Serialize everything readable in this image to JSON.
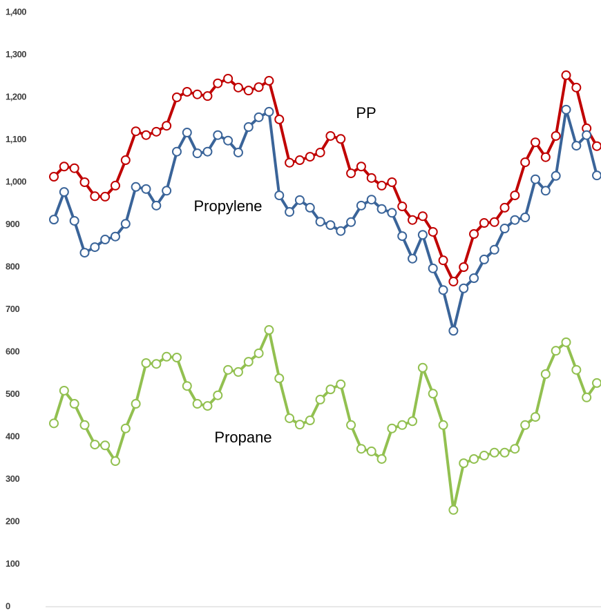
{
  "chart_data": {
    "type": "line",
    "categories": [
      null,
      null,
      null,
      null,
      null,
      null,
      null,
      null,
      null,
      null,
      null,
      null,
      null,
      null,
      null,
      null,
      null,
      null,
      null,
      null,
      null,
      null,
      null,
      null,
      null,
      null,
      null,
      null,
      null,
      null,
      null,
      null,
      null,
      null,
      null,
      null,
      null,
      null,
      null,
      null,
      null,
      null,
      null,
      null,
      null,
      null,
      null,
      null,
      null,
      null,
      null,
      null,
      null,
      null
    ],
    "series": [
      {
        "name": "PP",
        "color": "#c00000",
        "values": [
          1013,
          1037,
          1033,
          1000,
          967,
          966,
          992,
          1052,
          1120,
          1111,
          1119,
          1133,
          1200,
          1213,
          1207,
          1203,
          1233,
          1244,
          1223,
          1216,
          1224,
          1239,
          1148,
          1046,
          1052,
          1060,
          1070,
          1109,
          1102,
          1021,
          1037,
          1010,
          992,
          1000,
          943,
          911,
          920,
          883,
          816,
          766,
          800,
          878,
          904,
          906,
          940,
          969,
          1047,
          1094,
          1059,
          1109,
          1252,
          1223,
          1127,
          1085
        ]
      },
      {
        "name": "Propylene",
        "color": "#3a6499",
        "values": [
          912,
          977,
          909,
          834,
          847,
          865,
          872,
          902,
          989,
          984,
          945,
          980,
          1072,
          1117,
          1068,
          1072,
          1111,
          1098,
          1070,
          1130,
          1153,
          1166,
          969,
          930,
          958,
          940,
          907,
          899,
          885,
          906,
          945,
          959,
          937,
          928,
          873,
          820,
          876,
          797,
          746,
          650,
          750,
          774,
          818,
          841,
          891,
          911,
          917,
          1007,
          980,
          1015,
          1171,
          1086,
          1111,
          1016
        ]
      },
      {
        "name": "Propane",
        "color": "#92c050",
        "values": [
          432,
          509,
          478,
          428,
          382,
          380,
          343,
          420,
          478,
          574,
          572,
          589,
          587,
          520,
          478,
          473,
          498,
          558,
          553,
          577,
          597,
          652,
          538,
          444,
          429,
          439,
          488,
          512,
          524,
          428,
          372,
          366,
          348,
          420,
          428,
          437,
          563,
          502,
          428,
          228,
          338,
          348,
          356,
          363,
          363,
          372,
          428,
          447,
          548,
          603,
          623,
          558,
          493,
          527
        ]
      }
    ],
    "ylim": [
      0,
      1400
    ],
    "yticks": [
      0,
      100,
      200,
      300,
      400,
      500,
      600,
      700,
      800,
      900,
      {
        "value": 1000,
        "label": "1,000"
      },
      {
        "value": 1100,
        "label": "1,100"
      },
      {
        "value": 1200,
        "label": "1,200"
      },
      {
        "value": 1300,
        "label": "1,300"
      },
      {
        "value": 1400,
        "label": "1,400"
      }
    ],
    "grid": false
  }
}
